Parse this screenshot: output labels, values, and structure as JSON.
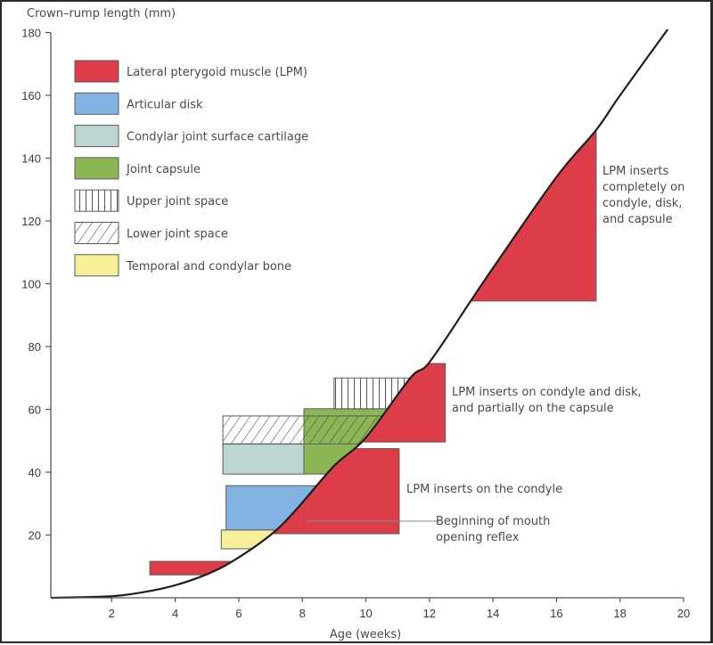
{
  "chart_data": {
    "type": "area",
    "title": "",
    "ylabel": "Crown–rump length (mm)",
    "xlabel": "Age (weeks)",
    "xlim": [
      0,
      20
    ],
    "ylim": [
      0,
      180
    ],
    "x_ticks": [
      2,
      4,
      6,
      8,
      10,
      12,
      14,
      16,
      18,
      20
    ],
    "x_tick_labels": [
      "2",
      "4",
      "6",
      "8",
      "10",
      "12",
      "14",
      "16",
      "18",
      "20"
    ],
    "y_ticks": [
      20,
      40,
      60,
      80,
      100,
      120,
      140,
      160,
      180
    ],
    "y_tick_labels": [
      "20",
      "40",
      "60",
      "80",
      "100",
      "120",
      "140",
      "160",
      "180"
    ],
    "grid": false,
    "legend_position": "top-left",
    "growth_curve": {
      "name": "Crown-rump length",
      "x": [
        0.1,
        2,
        3,
        4,
        5,
        5.8,
        7,
        7.8,
        9,
        10,
        11.4,
        12,
        13.3,
        14,
        16,
        17.25,
        18,
        19.5
      ],
      "y": [
        0,
        0.5,
        1.8,
        4,
        7.5,
        11.6,
        20,
        28,
        42,
        51,
        70,
        75,
        94.5,
        105,
        134,
        149,
        160,
        181
      ]
    },
    "legend": [
      {
        "key": "lpm",
        "label": "Lateral pterygoid muscle (LPM)",
        "color": "#dc3d48",
        "pattern": "solid"
      },
      {
        "key": "disk",
        "label": "Articular disk",
        "color": "#83b3e2",
        "pattern": "solid"
      },
      {
        "key": "cartilage",
        "label": "Condylar joint surface cartilage",
        "color": "#bcd5d2",
        "pattern": "solid"
      },
      {
        "key": "capsule",
        "label": "Joint capsule",
        "color": "#8cb654",
        "pattern": "solid"
      },
      {
        "key": "upper",
        "label": "Upper joint space",
        "color": "#ffffff",
        "pattern": "vertical"
      },
      {
        "key": "lower",
        "label": "Lower joint space",
        "color": "#ffffff",
        "pattern": "diagonal"
      },
      {
        "key": "bone",
        "label": "Temporal and condylar bone",
        "color": "#f4ef98",
        "pattern": "solid"
      }
    ],
    "regions": [
      {
        "key": "lpm",
        "side": "left-of-curve",
        "x_start": 3.2,
        "y_range": [
          7.3,
          11.6
        ]
      },
      {
        "key": "bone",
        "side": "left-of-curve",
        "x_start": 5.45,
        "y_range": [
          15.6,
          21.6
        ]
      },
      {
        "key": "disk",
        "side": "left-of-curve",
        "x_start": 5.6,
        "y_range": [
          21.6,
          35.7
        ]
      },
      {
        "key": "cartilage",
        "side": "box",
        "x_range": [
          5.5,
          8.05
        ],
        "y_range": [
          39.4,
          49
        ]
      },
      {
        "key": "capsule",
        "side": "left-of-curve",
        "x_start": 8.05,
        "y_range": [
          39.4,
          60.2
        ]
      },
      {
        "key": "lower",
        "side": "left-of-curve",
        "x_start": 5.5,
        "y_range": [
          49,
          57.9
        ]
      },
      {
        "key": "upper",
        "side": "left-of-curve",
        "x_start": 9.0,
        "y_range": [
          60.2,
          70
        ]
      },
      {
        "key": "lpm",
        "side": "right-of-curve",
        "x_end": 11.05,
        "y_range": [
          20.4,
          47.5
        ]
      },
      {
        "key": "lpm",
        "side": "right-of-curve",
        "x_end": 12.5,
        "y_range": [
          49.6,
          74.6
        ]
      },
      {
        "key": "lpm",
        "side": "right-of-curve",
        "x_end": 17.25,
        "y_range": [
          94.5,
          149
        ]
      }
    ],
    "annotations": [
      {
        "id": "complete",
        "lines": [
          "LPM inserts",
          "completely on",
          "condyle, disk,",
          "and capsule"
        ]
      },
      {
        "id": "partial",
        "lines": [
          "LPM inserts on condyle and disk,",
          "and partially on the capsule"
        ]
      },
      {
        "id": "condyle",
        "lines": [
          "LPM inserts on the condyle"
        ]
      },
      {
        "id": "reflex",
        "lines": [
          "Beginning of mouth",
          "opening reflex"
        ],
        "y_value": 24.4,
        "x_end": 12.3
      }
    ]
  }
}
